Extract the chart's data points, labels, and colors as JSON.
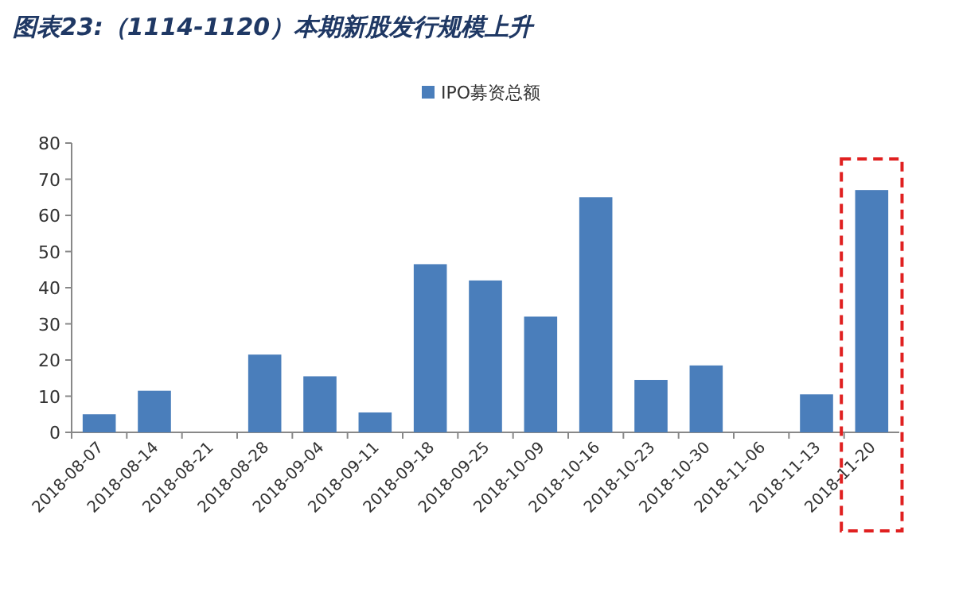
{
  "chart_data": {
    "type": "bar",
    "title": "图表23:（1114-1120）本期新股发行规模上升",
    "categories": [
      "2018-08-07",
      "2018-08-14",
      "2018-08-21",
      "2018-08-28",
      "2018-09-04",
      "2018-09-11",
      "2018-09-18",
      "2018-09-25",
      "2018-10-09",
      "2018-10-16",
      "2018-10-23",
      "2018-10-30",
      "2018-11-06",
      "2018-11-13",
      "2018-11-20"
    ],
    "series": [
      {
        "name": "IPO募资总额",
        "color": "#4a7ebb",
        "values": [
          5,
          11.5,
          0,
          21.5,
          15.5,
          5.5,
          46.5,
          42,
          32,
          65,
          14.5,
          18.5,
          0,
          10.5,
          67
        ]
      }
    ],
    "ylim": [
      0,
      80
    ],
    "yticks": [
      0,
      10,
      20,
      30,
      40,
      50,
      60,
      70,
      80
    ],
    "legend": "top"
  }
}
